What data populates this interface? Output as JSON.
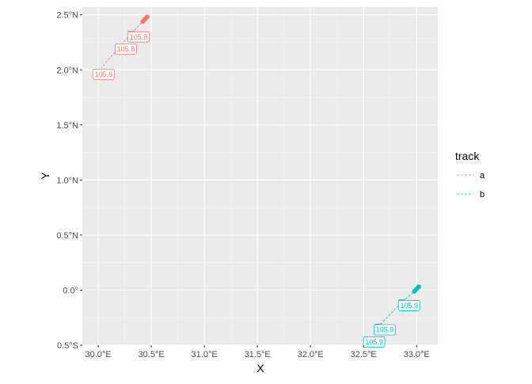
{
  "chart_data": {
    "type": "scatter",
    "title": "",
    "xlabel": "X",
    "ylabel": "Y",
    "xlim": [
      29.85,
      33.2
    ],
    "ylim": [
      -0.5,
      2.57
    ],
    "grid": true,
    "x_ticks": [
      {
        "value": 30.0,
        "label": "30.0°E"
      },
      {
        "value": 30.5,
        "label": "30.5°E"
      },
      {
        "value": 31.0,
        "label": "31.0°E"
      },
      {
        "value": 31.5,
        "label": "31.5°E"
      },
      {
        "value": 32.0,
        "label": "32.0°E"
      },
      {
        "value": 32.5,
        "label": "32.5°E"
      },
      {
        "value": 33.0,
        "label": "33.0°E"
      }
    ],
    "y_ticks": [
      {
        "value": -0.5,
        "label": "0.5°S"
      },
      {
        "value": 0.0,
        "label": "0.0°"
      },
      {
        "value": 0.5,
        "label": "0.5°N"
      },
      {
        "value": 1.0,
        "label": "1.0°N"
      },
      {
        "value": 1.5,
        "label": "1.5°N"
      },
      {
        "value": 2.0,
        "label": "2.0°N"
      },
      {
        "value": 2.5,
        "label": "2.5°N"
      }
    ],
    "legend": {
      "title": "track",
      "placement": "right",
      "entries": [
        {
          "label": "a",
          "color": "#F8766D"
        },
        {
          "label": "b",
          "color": "#00BFC4"
        }
      ]
    },
    "series": [
      {
        "name": "a",
        "color": "#F8766D",
        "points": [
          {
            "x": 30.46,
            "y": 2.48,
            "marker": "dot"
          },
          {
            "x": 30.44,
            "y": 2.46,
            "marker": "dot"
          },
          {
            "x": 30.42,
            "y": 2.44,
            "marker": "dot"
          },
          {
            "x": 30.31,
            "y": 2.33,
            "marker": "triangle-down"
          },
          {
            "x": 30.2,
            "y": 2.21,
            "marker": "triangle-down"
          },
          {
            "x": 30.03,
            "y": 2.02,
            "marker": "none"
          }
        ],
        "labels": [
          {
            "x": 30.38,
            "y": 2.3,
            "text": "105.8"
          },
          {
            "x": 30.26,
            "y": 2.19,
            "text": "105.8"
          },
          {
            "x": 30.05,
            "y": 1.96,
            "text": "105.8"
          }
        ]
      },
      {
        "name": "b",
        "color": "#00BFC4",
        "points": [
          {
            "x": 33.02,
            "y": 0.03,
            "marker": "dot"
          },
          {
            "x": 33.0,
            "y": 0.01,
            "marker": "dot"
          },
          {
            "x": 32.98,
            "y": -0.01,
            "marker": "dot"
          },
          {
            "x": 32.86,
            "y": -0.11,
            "marker": "triangle-down"
          },
          {
            "x": 32.64,
            "y": -0.33,
            "marker": "triangle-down"
          },
          {
            "x": 32.62,
            "y": -0.36,
            "marker": "none"
          }
        ],
        "labels": [
          {
            "x": 32.93,
            "y": -0.14,
            "text": "105.9"
          },
          {
            "x": 32.7,
            "y": -0.36,
            "text": "105.9"
          },
          {
            "x": 32.6,
            "y": -0.47,
            "text": "105.9"
          }
        ]
      }
    ]
  }
}
